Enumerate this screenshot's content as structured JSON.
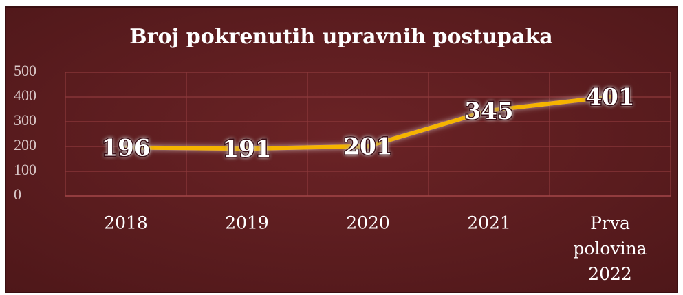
{
  "chart_data": {
    "type": "line",
    "title": "Broj pokrenutih upravnih postupaka",
    "categories": [
      "2018",
      "2019",
      "2020",
      "2021",
      "Prva polovina 2022"
    ],
    "series": [
      {
        "name": "Broj pokrenutih upravnih postupaka",
        "color": "#f5b400",
        "values": [
          196,
          191,
          201,
          345,
          401
        ]
      }
    ],
    "ylim": [
      0,
      500
    ],
    "yticks": [
      0,
      100,
      200,
      300,
      400,
      500
    ],
    "grid": true
  }
}
